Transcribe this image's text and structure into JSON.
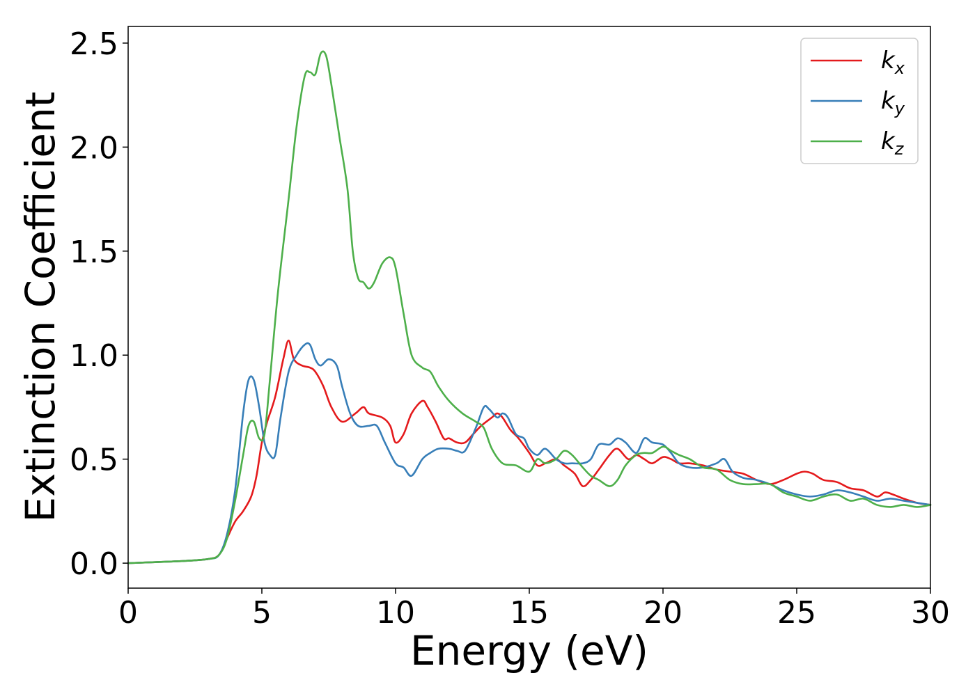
{
  "chart_data": {
    "type": "line",
    "xlabel": "Energy (eV)",
    "ylabel": "Extinction Coefficient",
    "xlim": [
      0,
      30
    ],
    "ylim": [
      -0.12,
      2.58
    ],
    "xticks": [
      0,
      5,
      10,
      15,
      20,
      25,
      30
    ],
    "yticks": [
      0.0,
      0.5,
      1.0,
      1.5,
      2.0,
      2.5
    ],
    "xtick_labels": [
      "0",
      "5",
      "10",
      "15",
      "20",
      "25",
      "30"
    ],
    "ytick_labels": [
      "0.0",
      "0.5",
      "1.0",
      "1.5",
      "2.0",
      "2.5"
    ],
    "grid": false,
    "legend_position": "top-right",
    "series": [
      {
        "name": "kx",
        "legend_base": "k",
        "legend_sub": "x",
        "color": "#e41a1c",
        "x": [
          0,
          1,
          2,
          3,
          3.4,
          3.7,
          4.0,
          4.3,
          4.6,
          4.8,
          5.0,
          5.2,
          5.5,
          5.8,
          6.0,
          6.2,
          6.5,
          6.8,
          7.0,
          7.3,
          7.6,
          8.0,
          8.5,
          8.8,
          9.0,
          9.5,
          9.8,
          10.0,
          10.3,
          10.6,
          11.0,
          11.2,
          11.5,
          11.8,
          12.0,
          12.3,
          12.6,
          12.9,
          13.2,
          13.6,
          13.8,
          14.0,
          14.3,
          14.6,
          15.0,
          15.3,
          15.6,
          16.0,
          16.3,
          16.7,
          17.0,
          17.3,
          17.6,
          18.0,
          18.3,
          18.7,
          19.0,
          19.3,
          19.6,
          20.0,
          20.3,
          20.6,
          21.0,
          21.5,
          22.0,
          22.5,
          23.0,
          23.5,
          24.0,
          24.5,
          25.0,
          25.3,
          25.6,
          26.0,
          26.5,
          27.0,
          27.5,
          28.0,
          28.3,
          28.6,
          29.0,
          29.5,
          30.0
        ],
        "y": [
          0.0,
          0.005,
          0.01,
          0.02,
          0.04,
          0.12,
          0.2,
          0.25,
          0.32,
          0.42,
          0.58,
          0.68,
          0.8,
          0.98,
          1.07,
          0.98,
          0.95,
          0.94,
          0.92,
          0.85,
          0.75,
          0.68,
          0.72,
          0.75,
          0.72,
          0.7,
          0.66,
          0.58,
          0.62,
          0.72,
          0.78,
          0.75,
          0.68,
          0.6,
          0.6,
          0.58,
          0.58,
          0.62,
          0.66,
          0.7,
          0.72,
          0.7,
          0.64,
          0.6,
          0.53,
          0.47,
          0.48,
          0.5,
          0.47,
          0.43,
          0.37,
          0.4,
          0.45,
          0.52,
          0.55,
          0.5,
          0.52,
          0.5,
          0.48,
          0.51,
          0.5,
          0.48,
          0.48,
          0.47,
          0.45,
          0.44,
          0.43,
          0.4,
          0.38,
          0.4,
          0.43,
          0.44,
          0.43,
          0.4,
          0.39,
          0.36,
          0.35,
          0.32,
          0.34,
          0.33,
          0.31,
          0.29,
          0.28
        ]
      },
      {
        "name": "ky",
        "legend_base": "k",
        "legend_sub": "y",
        "color": "#377eb8",
        "x": [
          0,
          1,
          2,
          3,
          3.4,
          3.7,
          4.0,
          4.3,
          4.5,
          4.7,
          4.9,
          5.1,
          5.3,
          5.5,
          5.7,
          6.0,
          6.3,
          6.6,
          6.8,
          7.0,
          7.2,
          7.5,
          7.8,
          8.0,
          8.3,
          8.6,
          9.0,
          9.3,
          9.6,
          10.0,
          10.3,
          10.6,
          11.0,
          11.3,
          11.6,
          12.0,
          12.3,
          12.6,
          13.0,
          13.3,
          13.5,
          13.8,
          14.0,
          14.2,
          14.5,
          14.8,
          15.0,
          15.3,
          15.6,
          16.0,
          16.3,
          16.6,
          17.0,
          17.3,
          17.6,
          18.0,
          18.3,
          18.6,
          19.0,
          19.3,
          19.6,
          20.0,
          20.3,
          20.6,
          21.0,
          21.5,
          22.0,
          22.3,
          22.6,
          23.0,
          23.5,
          24.0,
          24.5,
          25.0,
          25.5,
          26.0,
          26.5,
          27.0,
          27.5,
          28.0,
          28.5,
          29.0,
          29.5,
          30.0
        ],
        "y": [
          0.0,
          0.005,
          0.01,
          0.02,
          0.04,
          0.14,
          0.35,
          0.72,
          0.88,
          0.88,
          0.75,
          0.58,
          0.52,
          0.52,
          0.7,
          0.92,
          1.0,
          1.05,
          1.05,
          0.98,
          0.95,
          0.98,
          0.95,
          0.85,
          0.72,
          0.66,
          0.66,
          0.66,
          0.58,
          0.48,
          0.46,
          0.42,
          0.5,
          0.53,
          0.55,
          0.55,
          0.54,
          0.54,
          0.65,
          0.75,
          0.74,
          0.7,
          0.72,
          0.7,
          0.62,
          0.6,
          0.55,
          0.52,
          0.55,
          0.5,
          0.48,
          0.48,
          0.48,
          0.5,
          0.57,
          0.57,
          0.6,
          0.58,
          0.53,
          0.6,
          0.58,
          0.57,
          0.53,
          0.48,
          0.46,
          0.46,
          0.48,
          0.5,
          0.44,
          0.41,
          0.4,
          0.38,
          0.35,
          0.33,
          0.32,
          0.33,
          0.35,
          0.34,
          0.32,
          0.3,
          0.31,
          0.3,
          0.29,
          0.28
        ]
      },
      {
        "name": "kz",
        "legend_base": "k",
        "legend_sub": "z",
        "color": "#4daf4a",
        "x": [
          0,
          1,
          2,
          3,
          3.4,
          3.7,
          4.0,
          4.3,
          4.5,
          4.7,
          4.9,
          5.1,
          5.3,
          5.6,
          6.0,
          6.3,
          6.6,
          6.8,
          7.0,
          7.2,
          7.4,
          7.6,
          7.9,
          8.2,
          8.4,
          8.6,
          8.8,
          9.0,
          9.2,
          9.5,
          9.8,
          10.0,
          10.3,
          10.6,
          11.0,
          11.3,
          11.6,
          12.0,
          12.5,
          13.0,
          13.3,
          13.6,
          14.0,
          14.5,
          15.0,
          15.3,
          15.6,
          16.0,
          16.3,
          16.6,
          17.0,
          17.3,
          17.6,
          18.0,
          18.3,
          18.6,
          19.0,
          19.3,
          19.6,
          20.0,
          20.3,
          20.6,
          21.0,
          21.5,
          22.0,
          22.5,
          23.0,
          23.5,
          24.0,
          24.5,
          25.0,
          25.5,
          26.0,
          26.5,
          27.0,
          27.5,
          28.0,
          28.5,
          29.0,
          29.5,
          30.0
        ],
        "y": [
          0.0,
          0.005,
          0.01,
          0.02,
          0.04,
          0.12,
          0.3,
          0.52,
          0.66,
          0.68,
          0.6,
          0.62,
          0.88,
          1.3,
          1.75,
          2.1,
          2.34,
          2.36,
          2.35,
          2.45,
          2.44,
          2.3,
          2.05,
          1.8,
          1.5,
          1.37,
          1.35,
          1.32,
          1.35,
          1.44,
          1.47,
          1.42,
          1.2,
          1.0,
          0.94,
          0.92,
          0.85,
          0.78,
          0.72,
          0.68,
          0.65,
          0.55,
          0.48,
          0.47,
          0.44,
          0.5,
          0.48,
          0.5,
          0.54,
          0.52,
          0.46,
          0.42,
          0.4,
          0.37,
          0.4,
          0.47,
          0.52,
          0.53,
          0.53,
          0.56,
          0.54,
          0.52,
          0.5,
          0.46,
          0.45,
          0.4,
          0.38,
          0.38,
          0.38,
          0.34,
          0.32,
          0.3,
          0.32,
          0.33,
          0.3,
          0.31,
          0.28,
          0.27,
          0.28,
          0.27,
          0.28
        ]
      }
    ]
  }
}
